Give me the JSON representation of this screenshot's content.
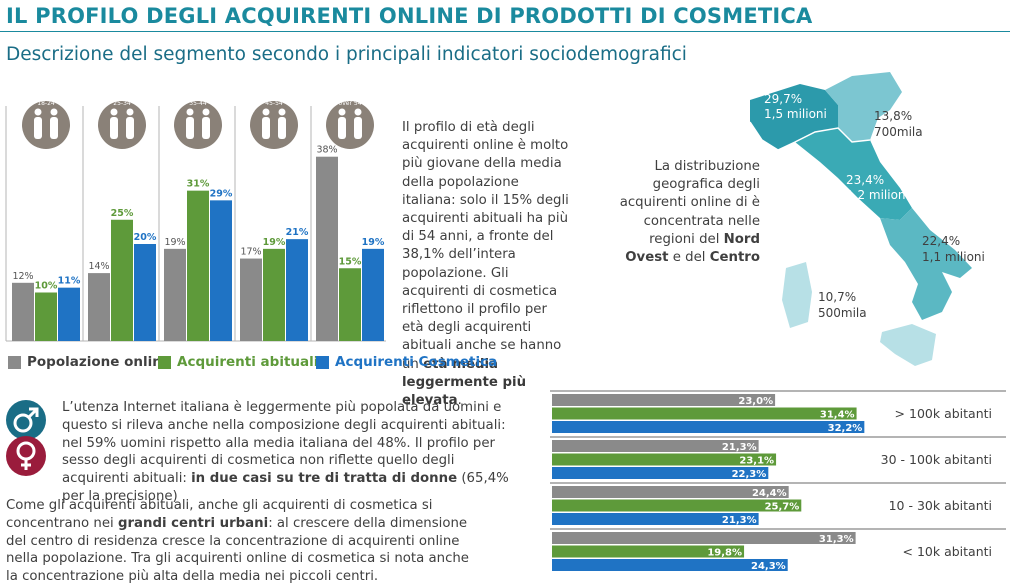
{
  "header": {
    "title": "IL PROFILO DEGLI ACQUIRENTI ONLINE DI PRODOTTI DI COSMETICA",
    "subtitle": "Descrizione del segmento secondo i principali indicatori sociodemografici"
  },
  "colors": {
    "teal": "#1a8a9e",
    "gray": "#8a8a8a",
    "green": "#5e9a3a",
    "blue": "#1f73c4",
    "male_icon": "#1a6d86",
    "female_icon": "#9a1c3c"
  },
  "age_text": {
    "intro": "Il profilo di età degli acquirenti online è molto più giovane della media della popolazione italiana: solo il 15% degli acquirenti abituali ha più di 54 anni, a fronte del 38,1% dell’intera popolazione. Gli acquirenti di cosmetica riflettono il profilo per età degli acquirenti abituali anche se hanno un ",
    "bold": "età media leggermente più elevata",
    "end": "."
  },
  "map_text": {
    "intro": "La distribuzione geografica degli acquirenti online di è concentrata nelle regioni del ",
    "bold1": "Nord Ovest",
    "mid": " e del ",
    "bold2": "Centro"
  },
  "legend": [
    {
      "label": "Popolazione online",
      "color": "#8a8a8a"
    },
    {
      "label": "Acquirenti abituali",
      "color": "#5e9a3a"
    },
    {
      "label": "Acquirenti Cosmetica",
      "color": "#1f73c4"
    }
  ],
  "gender_text": {
    "intro": "L’utenza Internet italiana è leggermente più popolata da uomini e questo si rileva anche nella composizione degli acquirenti abituali: nel 59% uomini rispetto alla media italiana del 48%. Il profilo per sesso degli acquirenti di cosmetica non riflette quello degli acquirenti abituali: ",
    "bold": "in due casi su tre di tratta di donne",
    "end": " (65,4% per la precisione)"
  },
  "city_text": {
    "intro": "Come gli acquirenti abituali, anche gli acquirenti di cosmetica si concentrano nei ",
    "bold": "grandi centri urbani",
    "end": ": al crescere della dimensione del centro di residenza cresce la concentrazione di acquirenti online nella popolazione.  Tra gli acquirenti online di cosmetica si nota anche la concentrazione più alta della media nei piccoli centri."
  },
  "map_labels": [
    {
      "pct": "29,7%",
      "amount": "1,5 milioni"
    },
    {
      "pct": "13,8%",
      "amount": "700mila"
    },
    {
      "pct": "23,4%",
      "amount": "1,2 milioni"
    },
    {
      "pct": "22,4%",
      "amount": "1,1 milioni"
    },
    {
      "pct": "10,7%",
      "amount": "500mila"
    }
  ],
  "chart_data": [
    {
      "type": "bar",
      "categories": [
        "18-24",
        "25-34",
        "35-44",
        "45-54",
        "over 54"
      ],
      "series": [
        {
          "name": "Popolazione online",
          "values": [
            12,
            14,
            19,
            17,
            38
          ],
          "labels": [
            "12%",
            "14%",
            "19%",
            "17%",
            "38%"
          ]
        },
        {
          "name": "Acquirenti abituali",
          "values": [
            10,
            25,
            31,
            19,
            15
          ],
          "labels": [
            "10%",
            "25%",
            "31%",
            "19%",
            "15%"
          ]
        },
        {
          "name": "Acquirenti Cosmetica",
          "values": [
            11,
            20,
            29,
            21,
            19
          ],
          "labels": [
            "11%",
            "20%",
            "29%",
            "21%",
            "19%"
          ]
        }
      ],
      "ylim": [
        0,
        45
      ]
    },
    {
      "type": "bar",
      "orientation": "horizontal",
      "categories": [
        "> 100k abitanti",
        "30 - 100k abitanti",
        "10 - 30k abitanti",
        "< 10k abitanti"
      ],
      "series": [
        {
          "name": "Popolazione online",
          "values": [
            23.0,
            21.3,
            24.4,
            31.3
          ],
          "labels": [
            "23,0%",
            "21,3%",
            "24,4%",
            "31,3%"
          ]
        },
        {
          "name": "Acquirenti abituali",
          "values": [
            31.4,
            23.1,
            25.7,
            19.8
          ],
          "labels": [
            "31,4%",
            "23,1%",
            "25,7%",
            "19,8%"
          ]
        },
        {
          "name": "Acquirenti Cosmetica",
          "values": [
            32.2,
            22.3,
            21.3,
            24.3
          ],
          "labels": [
            "32,2%",
            "22,3%",
            "21,3%",
            "24,3%"
          ]
        }
      ],
      "xlim": [
        0,
        36
      ]
    }
  ]
}
